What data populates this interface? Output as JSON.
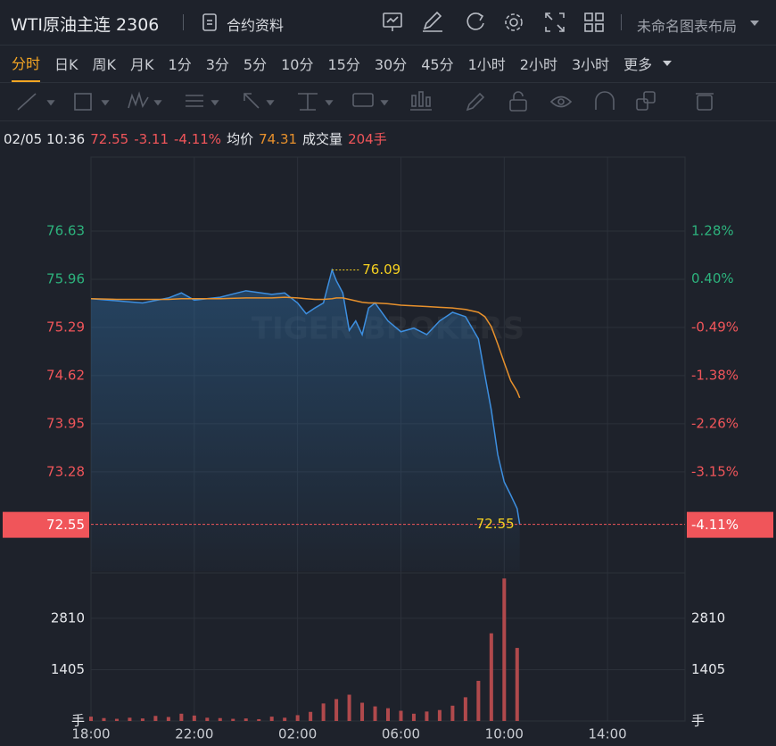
{
  "header": {
    "title": "WTI原油主连 2306",
    "contract": "合约资料",
    "layout": "未命名图表布局"
  },
  "tabs": [
    "分时",
    "日K",
    "周K",
    "月K",
    "1分",
    "3分",
    "5分",
    "10分",
    "15分",
    "30分",
    "45分",
    "1小时",
    "2小时",
    "3小时",
    "更多"
  ],
  "quote": {
    "time": "02/05 10:36",
    "price": "72.55",
    "change": "-3.11",
    "change_pct": "-4.11%",
    "avg_label": "均价",
    "avg": "74.31",
    "volume_label": "成交量",
    "volume": "204手"
  },
  "chart_data": [
    {
      "type": "line",
      "watermark": "TIGER BROKERS",
      "x": [
        "18:00",
        "19:00",
        "20:00",
        "21:00",
        "21:30",
        "22:00",
        "23:00",
        "00:00",
        "01:00",
        "01:30",
        "02:00",
        "02:20",
        "02:40",
        "03:00",
        "03:20",
        "03:30",
        "03:45",
        "04:00",
        "04:15",
        "04:30",
        "04:45",
        "05:00",
        "05:30",
        "06:00",
        "06:30",
        "07:00",
        "07:30",
        "08:00",
        "08:30",
        "09:00",
        "09:15",
        "09:30",
        "09:45",
        "10:00",
        "10:15",
        "10:30",
        "10:36"
      ],
      "series": [
        {
          "name": "分时",
          "color": "#3d8fe0",
          "values": [
            75.69,
            75.66,
            75.63,
            75.7,
            75.77,
            75.67,
            75.71,
            75.8,
            75.75,
            75.77,
            75.63,
            75.48,
            75.56,
            75.63,
            76.09,
            75.94,
            75.77,
            75.25,
            75.38,
            75.19,
            75.56,
            75.63,
            75.38,
            75.23,
            75.28,
            75.19,
            75.38,
            75.5,
            75.44,
            75.13,
            74.63,
            74.14,
            73.52,
            73.14,
            72.96,
            72.77,
            72.55
          ]
        },
        {
          "name": "均价",
          "color": "#e8912c",
          "values": [
            75.69,
            75.68,
            75.68,
            75.68,
            75.69,
            75.69,
            75.69,
            75.7,
            75.7,
            75.71,
            75.7,
            75.69,
            75.68,
            75.68,
            75.69,
            75.7,
            75.7,
            75.68,
            75.66,
            75.64,
            75.63,
            75.63,
            75.62,
            75.6,
            75.59,
            75.58,
            75.57,
            75.56,
            75.54,
            75.5,
            75.44,
            75.3,
            75.06,
            74.8,
            74.55,
            74.4,
            74.31
          ]
        }
      ],
      "xlim": [
        "18:00",
        "17:00"
      ],
      "xticks": [
        "18:00",
        "22:00",
        "02:00",
        "06:00",
        "10:00",
        "14:00"
      ],
      "ylim": [
        71.9,
        77.66
      ],
      "yticks": [
        76.63,
        75.96,
        75.29,
        74.62,
        73.95,
        73.28
      ],
      "y2lim": [
        -4.97,
        2.64
      ],
      "y2ticks": [
        {
          "value": 1.28,
          "label": "1.28%"
        },
        {
          "value": 0.4,
          "label": "0.40%"
        },
        {
          "value": -0.49,
          "label": "-0.49%"
        },
        {
          "value": -1.38,
          "label": "-1.38%"
        },
        {
          "value": -2.26,
          "label": "-2.26%"
        },
        {
          "value": -3.15,
          "label": "-3.15%"
        }
      ],
      "up_color": "#2db37d",
      "down_color": "#f0555a",
      "grid": true
    },
    {
      "type": "bar",
      "x": [
        "18:00",
        "18:30",
        "19:00",
        "19:30",
        "20:00",
        "20:30",
        "21:00",
        "21:30",
        "22:00",
        "22:30",
        "23:00",
        "23:30",
        "00:00",
        "00:30",
        "01:00",
        "01:30",
        "02:00",
        "02:30",
        "03:00",
        "03:30",
        "04:00",
        "04:30",
        "05:00",
        "05:30",
        "06:00",
        "06:30",
        "07:00",
        "07:30",
        "08:00",
        "08:30",
        "09:00",
        "09:30",
        "10:00",
        "10:30"
      ],
      "values": [
        120,
        80,
        60,
        90,
        70,
        140,
        110,
        200,
        150,
        90,
        80,
        60,
        70,
        50,
        120,
        90,
        160,
        250,
        480,
        600,
        720,
        500,
        400,
        350,
        280,
        200,
        260,
        300,
        420,
        650,
        1100,
        2400,
        3900,
        2000
      ],
      "color": "#b0494c",
      "ylim": [
        0,
        3980
      ],
      "yticks": [
        {
          "value": 0,
          "label": "手"
        },
        1405,
        2810
      ],
      "grid": true
    }
  ]
}
